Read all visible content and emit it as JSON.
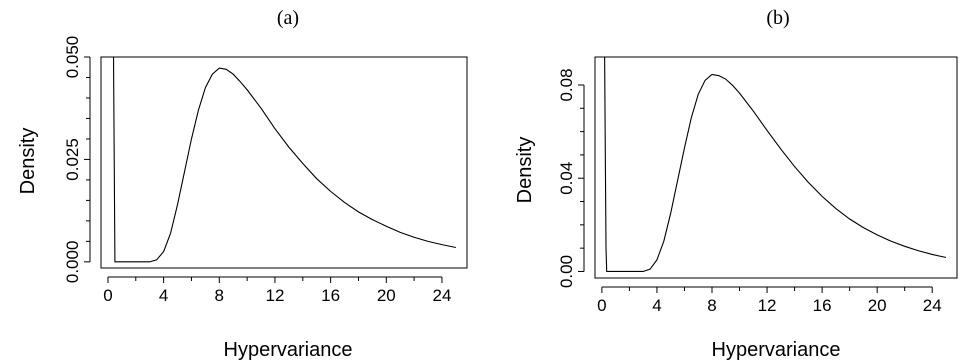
{
  "chart_data": [
    {
      "type": "line",
      "title": "(a)",
      "xlabel": "Hypervariance",
      "ylabel": "Density",
      "xlim": [
        -0.5,
        25.8
      ],
      "ylim": [
        -0.0015,
        0.05
      ],
      "x_ticks": [
        "0",
        "4",
        "8",
        "12",
        "16",
        "20",
        "24"
      ],
      "y_ticks": [
        "0.000",
        "0.025",
        "0.050"
      ],
      "y_tick_values": [
        0,
        0.025,
        0.05
      ],
      "y_minor_step": 0.005,
      "grid": false,
      "series": [
        {
          "x": [
            0.0,
            0.2,
            0.3,
            0.4,
            0.5,
            0.6,
            0.7,
            0.8,
            1.0,
            2.0,
            2.5,
            3.0,
            3.5,
            4.0,
            4.5,
            5.0,
            5.5,
            6.0,
            6.5,
            7.0,
            7.5,
            8.0,
            8.5,
            9.0,
            9.5,
            10.0,
            11.0,
            12.0,
            13.0,
            14.0,
            15.0,
            16.0,
            17.0,
            18.0,
            19.0,
            20.0,
            21.0,
            22.0,
            23.0,
            24.0,
            25.0
          ],
          "y": [
            0.05,
            0.05,
            0.05,
            0.05,
            0.0,
            0.0,
            0.0,
            0.0,
            0.0,
            0.0,
            0.0,
            0.0,
            0.0005,
            0.0025,
            0.007,
            0.014,
            0.022,
            0.03,
            0.037,
            0.0425,
            0.0458,
            0.0473,
            0.047,
            0.0458,
            0.044,
            0.042,
            0.0375,
            0.0325,
            0.028,
            0.024,
            0.0203,
            0.0172,
            0.0145,
            0.0122,
            0.0103,
            0.0087,
            0.0072,
            0.006,
            0.005,
            0.0042,
            0.0035
          ]
        }
      ]
    },
    {
      "type": "line",
      "title": "(b)",
      "xlabel": "Hypervariance",
      "ylabel": "Density",
      "xlim": [
        -0.5,
        25.8
      ],
      "ylim": [
        -0.0028,
        0.092
      ],
      "x_ticks": [
        "0",
        "4",
        "8",
        "12",
        "16",
        "20",
        "24"
      ],
      "y_ticks": [
        "0.00",
        "0.04",
        "0.08"
      ],
      "y_tick_values": [
        0,
        0.04,
        0.08
      ],
      "y_minor_step": 0.01,
      "grid": false,
      "series": [
        {
          "x": [
            0.0,
            0.05,
            0.1,
            0.15,
            0.2,
            0.25,
            0.3,
            0.35,
            0.4,
            0.5,
            0.6,
            0.8,
            1.0,
            2.0,
            2.5,
            3.0,
            3.5,
            4.0,
            4.5,
            5.0,
            5.5,
            6.0,
            6.5,
            7.0,
            7.5,
            8.0,
            8.5,
            9.0,
            9.5,
            10.0,
            11.0,
            12.0,
            13.0,
            14.0,
            15.0,
            16.0,
            17.0,
            18.0,
            19.0,
            20.0,
            21.0,
            22.0,
            23.0,
            24.0,
            25.0
          ],
          "y": [
            0.092,
            0.092,
            0.092,
            0.092,
            0.092,
            0.05,
            0.01,
            0.0,
            0.0,
            0.0,
            0.0,
            0.0,
            0.0,
            0.0,
            0.0,
            0.0,
            0.001,
            0.005,
            0.013,
            0.025,
            0.039,
            0.053,
            0.066,
            0.076,
            0.082,
            0.0845,
            0.084,
            0.0825,
            0.0798,
            0.0765,
            0.0688,
            0.0605,
            0.0525,
            0.045,
            0.0382,
            0.0322,
            0.027,
            0.0225,
            0.0188,
            0.0157,
            0.013,
            0.0108,
            0.0089,
            0.0073,
            0.006
          ]
        }
      ]
    }
  ]
}
